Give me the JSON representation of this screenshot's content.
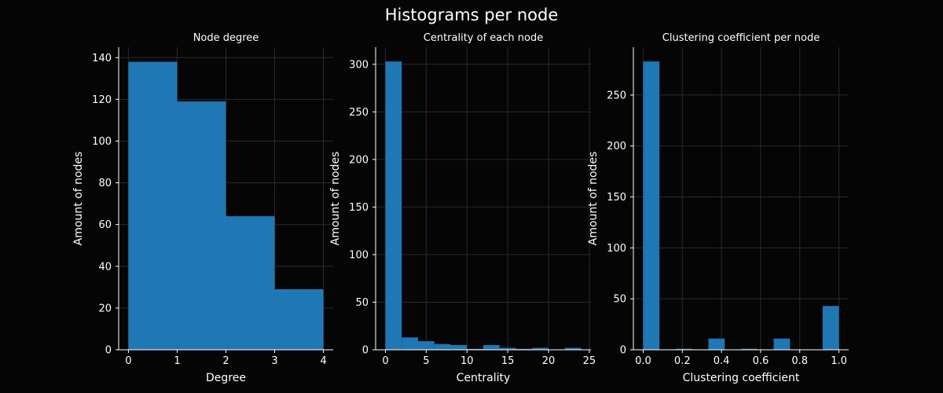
{
  "figure": {
    "suptitle": "Histograms per node",
    "background": "#050505",
    "bar_color": "#1f77b4",
    "text_color": "#ffffff"
  },
  "chart_data": [
    {
      "type": "bar",
      "title": "Node degree",
      "xlabel": "Degree",
      "ylabel": "Amount of nodes",
      "bins": [
        [
          0,
          1
        ],
        [
          1,
          2
        ],
        [
          2,
          3
        ],
        [
          3,
          4
        ]
      ],
      "values": [
        138,
        119,
        64,
        29
      ],
      "xlim": [
        -0.2,
        4.2
      ],
      "ylim": [
        0,
        145
      ],
      "xticks": [
        0,
        1,
        2,
        3,
        4
      ],
      "xtick_labels": [
        "0",
        "1",
        "2",
        "3",
        "4"
      ],
      "yticks": [
        0,
        20,
        40,
        60,
        80,
        100,
        120,
        140
      ],
      "ytick_labels": [
        "0",
        "20",
        "40",
        "60",
        "80",
        "100",
        "120",
        "140"
      ],
      "grid": true
    },
    {
      "type": "bar",
      "title": "Centrality of each node",
      "xlabel": "Centrality",
      "ylabel": "Amount of nodes",
      "bins": [
        [
          0,
          2
        ],
        [
          2,
          4
        ],
        [
          4,
          6
        ],
        [
          6,
          8
        ],
        [
          8,
          10
        ],
        [
          10,
          12
        ],
        [
          12,
          14
        ],
        [
          14,
          16
        ],
        [
          16,
          18
        ],
        [
          18,
          20
        ],
        [
          20,
          22
        ],
        [
          22,
          24
        ]
      ],
      "values": [
        303,
        13,
        9,
        6,
        5,
        1,
        5,
        2,
        1,
        2,
        0,
        2
      ],
      "xlim": [
        -1.2,
        25.2
      ],
      "ylim": [
        0,
        318
      ],
      "xticks": [
        0,
        5,
        10,
        15,
        20,
        25
      ],
      "xtick_labels": [
        "0",
        "5",
        "10",
        "15",
        "20",
        "25"
      ],
      "yticks": [
        0,
        50,
        100,
        150,
        200,
        250,
        300
      ],
      "ytick_labels": [
        "0",
        "50",
        "100",
        "150",
        "200",
        "250",
        "300"
      ],
      "grid": true
    },
    {
      "type": "bar",
      "title": "Clustering coefficient per node",
      "xlabel": "Clustering coefficient",
      "ylabel": "Amount of nodes",
      "bins": [
        [
          0,
          0.0833
        ],
        [
          0.0833,
          0.1667
        ],
        [
          0.1667,
          0.25
        ],
        [
          0.25,
          0.3333
        ],
        [
          0.3333,
          0.4167
        ],
        [
          0.4167,
          0.5
        ],
        [
          0.5,
          0.5833
        ],
        [
          0.5833,
          0.6667
        ],
        [
          0.6667,
          0.75
        ],
        [
          0.75,
          0.8333
        ],
        [
          0.8333,
          0.9167
        ],
        [
          0.9167,
          1.0
        ]
      ],
      "values": [
        283,
        0,
        1,
        0,
        11,
        0,
        1,
        0,
        11,
        0,
        0,
        43
      ],
      "xlim": [
        -0.05,
        1.05
      ],
      "ylim": [
        0,
        297
      ],
      "xticks": [
        0.0,
        0.2,
        0.4,
        0.6,
        0.8,
        1.0
      ],
      "xtick_labels": [
        "0.0",
        "0.2",
        "0.4",
        "0.6",
        "0.8",
        "1.0"
      ],
      "yticks": [
        0,
        50,
        100,
        150,
        200,
        250
      ],
      "ytick_labels": [
        "0",
        "50",
        "100",
        "150",
        "200",
        "250"
      ],
      "grid": true
    }
  ]
}
